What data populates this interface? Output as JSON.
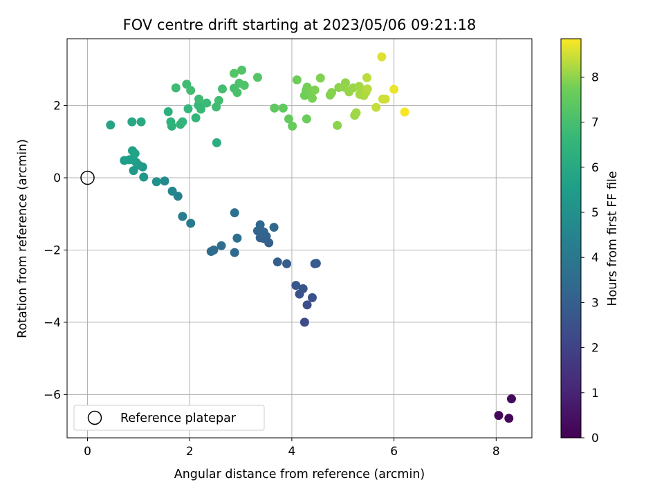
{
  "chart_data": {
    "type": "scatter",
    "title": "FOV centre drift starting at 2023/05/06 09:21:18",
    "xlabel": "Angular distance from reference (arcmin)",
    "ylabel": "Rotation from reference (arcmin)",
    "xlim": [
      -0.4,
      8.7
    ],
    "ylim": [
      -7.2,
      3.85
    ],
    "x_ticks": [
      0,
      2,
      4,
      6,
      8
    ],
    "y_ticks": [
      -6,
      -4,
      -2,
      0,
      2
    ],
    "grid": true,
    "colorbar": {
      "label": "Hours from first FF file",
      "range": [
        0,
        8.85
      ],
      "ticks": [
        0,
        1,
        2,
        3,
        4,
        5,
        6,
        7,
        8
      ],
      "colormap": "viridis"
    },
    "legend": {
      "position": "lower-left",
      "entries": [
        "Reference platepar"
      ]
    },
    "reference": {
      "name": "Reference platepar",
      "x": 0,
      "y": 0
    },
    "series": [
      {
        "fields": [
          "x",
          "y",
          "hours"
        ],
        "points": [
          [
            8.05,
            -6.58,
            0.1
          ],
          [
            8.25,
            -6.66,
            0.15
          ],
          [
            8.3,
            -6.12,
            0.2
          ],
          [
            4.25,
            -4.0,
            2.3
          ],
          [
            4.3,
            -3.52,
            2.4
          ],
          [
            4.4,
            -3.32,
            2.5
          ],
          [
            4.15,
            -3.22,
            2.55
          ],
          [
            4.22,
            -3.07,
            2.6
          ],
          [
            4.08,
            -2.98,
            2.7
          ],
          [
            4.45,
            -2.38,
            2.8
          ],
          [
            4.48,
            -2.37,
            2.85
          ],
          [
            3.9,
            -2.38,
            2.9
          ],
          [
            3.72,
            -2.33,
            2.95
          ],
          [
            3.55,
            -1.8,
            3.0
          ],
          [
            3.45,
            -1.68,
            3.05
          ],
          [
            3.38,
            -1.66,
            3.1
          ],
          [
            3.5,
            -1.62,
            3.15
          ],
          [
            3.33,
            -1.47,
            3.2
          ],
          [
            3.45,
            -1.5,
            3.25
          ],
          [
            3.38,
            -1.3,
            3.3
          ],
          [
            3.65,
            -1.37,
            3.35
          ],
          [
            2.88,
            -2.07,
            3.4
          ],
          [
            2.42,
            -2.04,
            3.45
          ],
          [
            2.47,
            -2.0,
            3.5
          ],
          [
            2.62,
            -1.88,
            3.55
          ],
          [
            2.93,
            -1.67,
            3.6
          ],
          [
            2.88,
            -0.97,
            3.7
          ],
          [
            2.02,
            -1.26,
            4.1
          ],
          [
            1.86,
            -1.07,
            4.2
          ],
          [
            1.77,
            -0.51,
            4.4
          ],
          [
            1.66,
            -0.37,
            4.6
          ],
          [
            1.51,
            -0.09,
            4.8
          ],
          [
            1.35,
            -0.11,
            5.0
          ],
          [
            1.1,
            0.02,
            5.2
          ],
          [
            1.08,
            0.3,
            5.3
          ],
          [
            0.9,
            0.2,
            5.35
          ],
          [
            1.0,
            0.35,
            5.4
          ],
          [
            0.95,
            0.43,
            5.45
          ],
          [
            0.82,
            0.5,
            5.5
          ],
          [
            0.72,
            0.48,
            5.55
          ],
          [
            0.88,
            0.52,
            5.6
          ],
          [
            0.88,
            0.75,
            5.65
          ],
          [
            0.93,
            0.67,
            5.7
          ],
          [
            0.45,
            1.46,
            5.85
          ],
          [
            0.87,
            1.55,
            5.95
          ],
          [
            1.05,
            1.55,
            6.0
          ],
          [
            2.53,
            0.97,
            6.2
          ],
          [
            1.58,
            1.83,
            6.3
          ],
          [
            1.65,
            1.43,
            6.35
          ],
          [
            1.63,
            1.55,
            6.4
          ],
          [
            1.82,
            1.48,
            6.45
          ],
          [
            1.86,
            1.55,
            6.5
          ],
          [
            2.12,
            1.66,
            6.55
          ],
          [
            1.97,
            1.91,
            6.6
          ],
          [
            2.17,
            2.01,
            6.65
          ],
          [
            2.22,
            1.9,
            6.7
          ],
          [
            2.33,
            2.07,
            6.75
          ],
          [
            2.18,
            2.18,
            6.8
          ],
          [
            2.52,
            1.96,
            6.85
          ],
          [
            2.57,
            2.14,
            6.9
          ],
          [
            1.73,
            2.49,
            6.8
          ],
          [
            1.94,
            2.59,
            6.85
          ],
          [
            2.02,
            2.42,
            6.9
          ],
          [
            2.64,
            2.46,
            6.95
          ],
          [
            2.87,
            2.48,
            7.0
          ],
          [
            2.93,
            2.36,
            7.05
          ],
          [
            2.97,
            2.62,
            7.1
          ],
          [
            3.07,
            2.56,
            7.15
          ],
          [
            3.02,
            2.98,
            7.2
          ],
          [
            2.87,
            2.89,
            7.25
          ],
          [
            3.33,
            2.78,
            7.3
          ],
          [
            3.66,
            1.93,
            7.45
          ],
          [
            3.83,
            1.93,
            7.5
          ],
          [
            3.94,
            1.63,
            7.55
          ],
          [
            4.01,
            1.43,
            7.6
          ],
          [
            4.29,
            1.63,
            7.65
          ],
          [
            4.1,
            2.71,
            7.7
          ],
          [
            4.25,
            2.28,
            7.72
          ],
          [
            4.28,
            2.42,
            7.75
          ],
          [
            4.3,
            2.51,
            7.78
          ],
          [
            4.38,
            2.35,
            7.8
          ],
          [
            4.4,
            2.2,
            7.82
          ],
          [
            4.45,
            2.43,
            7.85
          ],
          [
            4.56,
            2.76,
            7.88
          ],
          [
            4.75,
            2.29,
            7.9
          ],
          [
            4.78,
            2.36,
            7.93
          ],
          [
            4.89,
            1.45,
            7.95
          ],
          [
            4.92,
            2.5,
            7.98
          ],
          [
            5.05,
            2.63,
            8.0
          ],
          [
            5.02,
            2.51,
            8.03
          ],
          [
            5.12,
            2.38,
            8.05
          ],
          [
            5.2,
            2.49,
            8.08
          ],
          [
            5.23,
            1.73,
            8.1
          ],
          [
            5.26,
            1.8,
            8.12
          ],
          [
            5.32,
            2.53,
            8.15
          ],
          [
            5.33,
            2.31,
            8.18
          ],
          [
            5.41,
            2.28,
            8.2
          ],
          [
            5.45,
            2.37,
            8.25
          ],
          [
            5.48,
            2.46,
            8.3
          ],
          [
            5.47,
            2.77,
            8.35
          ],
          [
            5.65,
            1.95,
            8.4
          ],
          [
            5.78,
            2.18,
            8.45
          ],
          [
            5.83,
            2.18,
            8.5
          ],
          [
            5.76,
            3.35,
            8.6
          ],
          [
            6.0,
            2.45,
            8.7
          ],
          [
            6.21,
            1.82,
            8.8
          ]
        ]
      }
    ]
  }
}
